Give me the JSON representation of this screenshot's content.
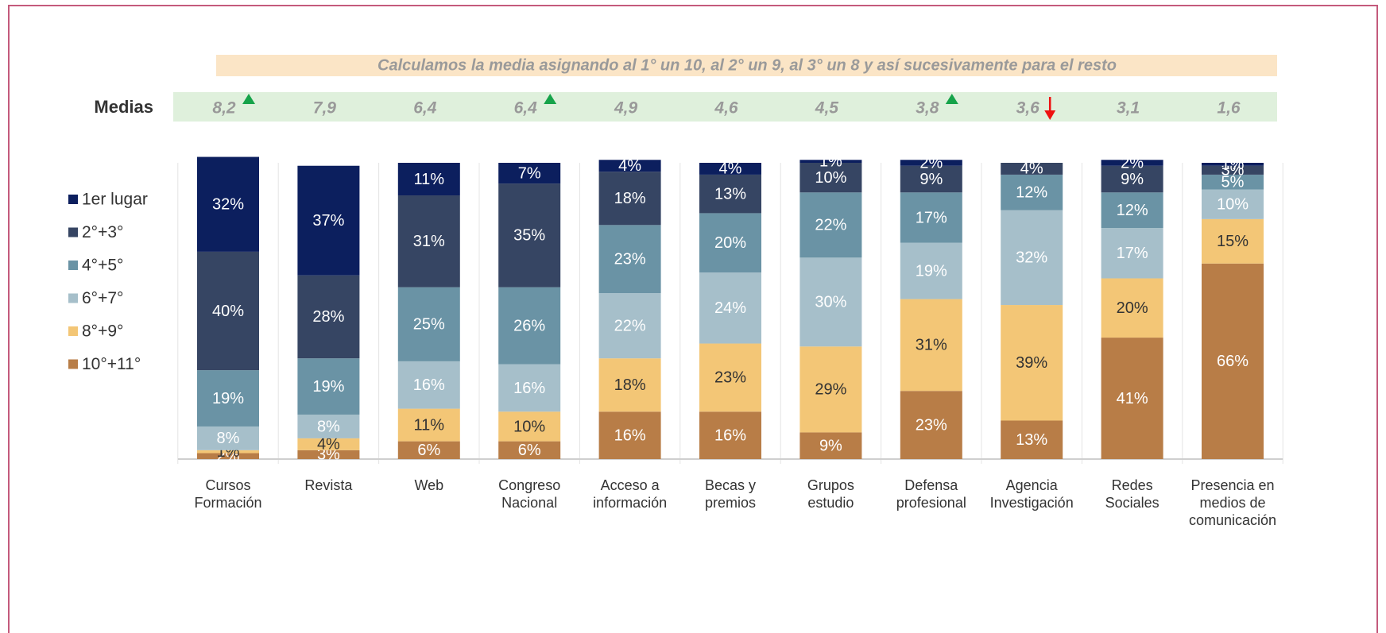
{
  "chart_data": {
    "type": "stacked_bar",
    "note": "Calculamos la media asignando al 1° un 10, al 2° un 9, al 3° un 8 y así sucesivamente para el resto",
    "medias_label": "Medias",
    "medias": [
      "8,2",
      "7,9",
      "6,4",
      "6,4",
      "4,9",
      "4,6",
      "4,5",
      "3,8",
      "3,6",
      "3,1",
      "1,6"
    ],
    "trend": [
      "up",
      null,
      null,
      "up",
      null,
      null,
      null,
      "up",
      "down",
      null,
      null
    ],
    "categories": [
      "Cursos Formación",
      "Revista",
      "Web",
      "Congreso Nacional",
      "Acceso a información",
      "Becas y premios",
      "Grupos estudio",
      "Defensa profesional",
      "Agencia Investigación",
      "Redes Sociales",
      "Presencia en medios de comunicación"
    ],
    "ylim": [
      0,
      100
    ],
    "series": [
      {
        "name": "1er lugar",
        "color": "#0c1f5e",
        "text_color": "#ffffff",
        "values": [
          32,
          37,
          11,
          7,
          4,
          4,
          1,
          2,
          null,
          2,
          1
        ],
        "value_labels": [
          "32%",
          "37%",
          "11%",
          "7%",
          "4%",
          "4%",
          "1%",
          "2%",
          null,
          "2%",
          "1%"
        ]
      },
      {
        "name": "2°+3°",
        "color": "#364563",
        "text_color": "#ffffff",
        "values": [
          40,
          28,
          31,
          35,
          18,
          13,
          10,
          9,
          4,
          9,
          3
        ],
        "value_labels": [
          "40%",
          "28%",
          "31%",
          "35%",
          "18%",
          "13%",
          "10%",
          "9%",
          "4%",
          "9%",
          "3%"
        ]
      },
      {
        "name": "4°+5°",
        "color": "#6a93a5",
        "text_color": "#ffffff",
        "values": [
          19,
          19,
          25,
          26,
          23,
          20,
          22,
          17,
          12,
          12,
          5
        ],
        "value_labels": [
          "19%",
          "19%",
          "25%",
          "26%",
          "23%",
          "20%",
          "22%",
          "17%",
          "12%",
          "12%",
          "5%"
        ]
      },
      {
        "name": "6°+7°",
        "color": "#a6bfca",
        "text_color": "#ffffff",
        "values": [
          8,
          8,
          16,
          16,
          22,
          24,
          30,
          19,
          32,
          17,
          10
        ],
        "value_labels": [
          "8%",
          "8%",
          "16%",
          "16%",
          "22%",
          "24%",
          "30%",
          "19%",
          "32%",
          "17%",
          "10%"
        ]
      },
      {
        "name": "8°+9°",
        "color": "#f3c676",
        "text_color": "#333333",
        "values": [
          1,
          4,
          11,
          10,
          18,
          23,
          29,
          31,
          39,
          20,
          15
        ],
        "value_labels": [
          "1%",
          "4%",
          "11%",
          "10%",
          "18%",
          "23%",
          "29%",
          "31%",
          "39%",
          "20%",
          "15%"
        ]
      },
      {
        "name": "10°+11°",
        "color": "#b87d47",
        "text_color": "#ffffff",
        "values": [
          2,
          3,
          6,
          6,
          16,
          16,
          9,
          23,
          13,
          41,
          66
        ],
        "value_labels": [
          "2%",
          "3%",
          "6%",
          "6%",
          "16%",
          "16%",
          "9%",
          "23%",
          "13%",
          "41%",
          "66%"
        ]
      }
    ]
  }
}
